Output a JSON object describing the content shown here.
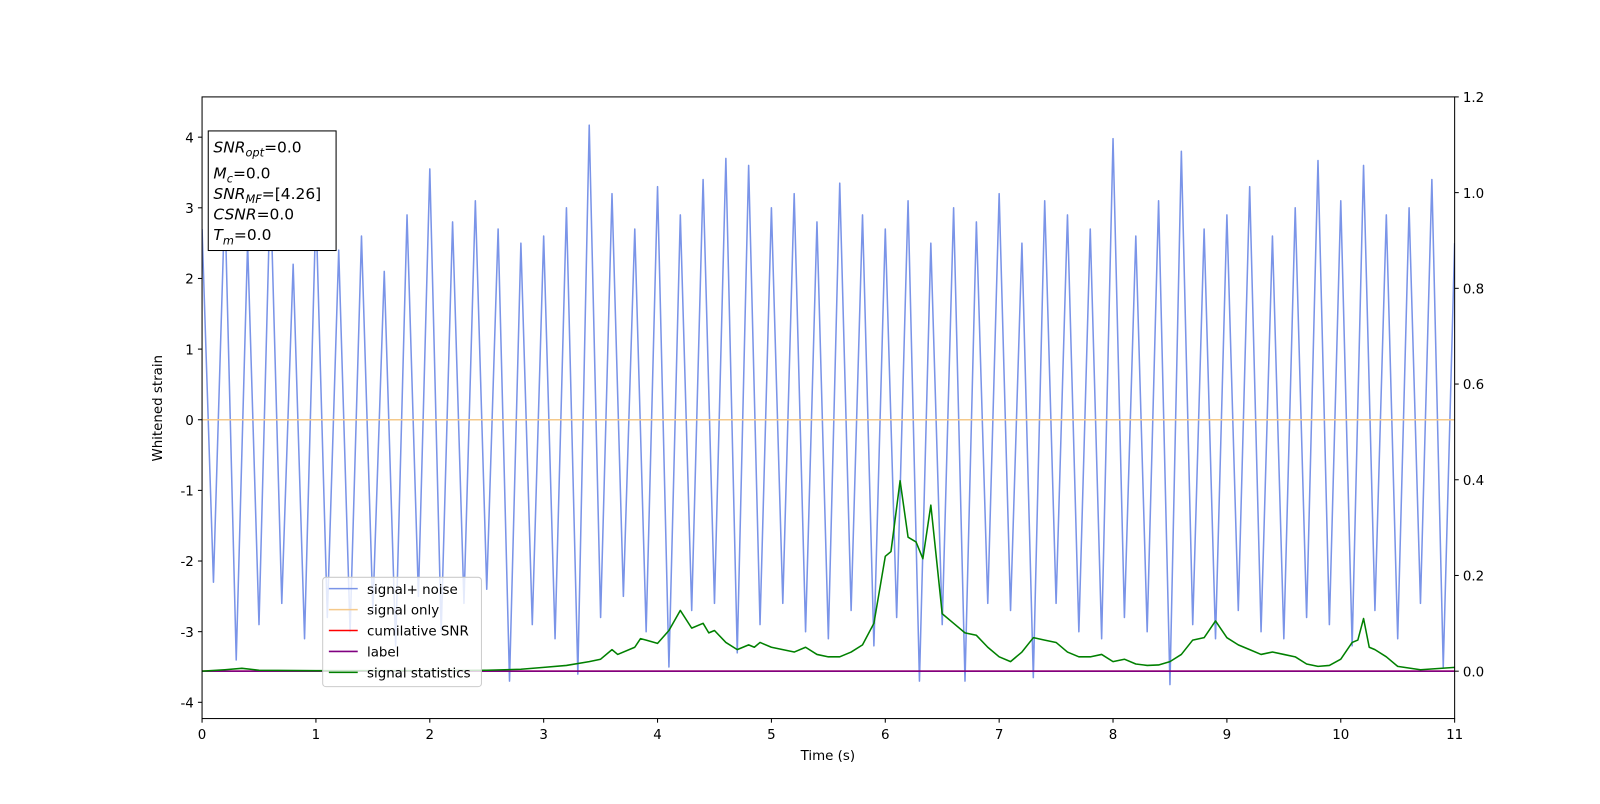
{
  "chart_data": {
    "type": "line",
    "xlabel": "Time (s)",
    "ylabel": "Whitened strain",
    "xlim": [
      0,
      11
    ],
    "xticks": [
      0,
      1,
      2,
      3,
      4,
      5,
      6,
      7,
      8,
      9,
      10,
      11
    ],
    "ylim": [
      -4.23,
      4.57
    ],
    "yticks": [
      -4,
      -3,
      -2,
      -1,
      0,
      1,
      2,
      3,
      4
    ],
    "y2lim": [
      -0.099,
      1.2
    ],
    "y2ticks": [
      {
        "value": 0,
        "label": "0.0"
      },
      0.2,
      0.4,
      0.6,
      0.8,
      {
        "value": 1,
        "label": "1.0"
      },
      1.2
    ],
    "annotation_box": [
      {
        "text": "SNR",
        "sub": "opt",
        "suffix": "=0.0"
      },
      {
        "text": "M",
        "sub": "c",
        "suffix": "=0.0"
      },
      {
        "text": "SNR",
        "sub": "MF",
        "suffix": "=[4.26]"
      },
      {
        "text": "CSNR",
        "suffix": "=0.0"
      },
      {
        "text": "T",
        "sub": "m",
        "suffix": "=0.0"
      }
    ],
    "series": [
      {
        "name": "signal+ noise",
        "color": "#7a94e8",
        "x": [
          0,
          0.1,
          0.2,
          0.3,
          0.4,
          0.5,
          0.6,
          0.7,
          0.8,
          0.9,
          1,
          1.1,
          1.2,
          1.3,
          1.4,
          1.5,
          1.6,
          1.7,
          1.8,
          1.9,
          2,
          2.1,
          2.2,
          2.3,
          2.4,
          2.5,
          2.6,
          2.7,
          2.8,
          2.9,
          3,
          3.1,
          3.2,
          3.3,
          3.4,
          3.5,
          3.6,
          3.7,
          3.8,
          3.9,
          4,
          4.1,
          4.2,
          4.3,
          4.4,
          4.5,
          4.6,
          4.7,
          4.8,
          4.9,
          5,
          5.1,
          5.2,
          5.3,
          5.4,
          5.5,
          5.6,
          5.7,
          5.8,
          5.9,
          6,
          6.1,
          6.2,
          6.3,
          6.4,
          6.5,
          6.6,
          6.7,
          6.8,
          6.9,
          7,
          7.1,
          7.2,
          7.3,
          7.4,
          7.5,
          7.6,
          7.7,
          7.8,
          7.9,
          8,
          8.1,
          8.2,
          8.3,
          8.4,
          8.5,
          8.6,
          8.7,
          8.8,
          8.9,
          9,
          9.1,
          9.2,
          9.3,
          9.4,
          9.5,
          9.6,
          9.7,
          9.8,
          9.9,
          10,
          10.1,
          10.2,
          10.3,
          10.4,
          10.5,
          10.6,
          10.7,
          10.8,
          10.9,
          11
        ],
        "values": [
          2.7,
          -2.3,
          3.1,
          -3.4,
          2.5,
          -2.9,
          3.3,
          -2.6,
          2.2,
          -3.1,
          3.0,
          -2.8,
          2.4,
          -3.0,
          2.6,
          -2.7,
          2.1,
          -3.2,
          2.9,
          -2.5,
          3.55,
          -3.0,
          2.8,
          -2.6,
          3.1,
          -2.4,
          2.7,
          -3.7,
          2.5,
          -2.9,
          2.6,
          -3.1,
          3.0,
          -3.6,
          4.17,
          -2.8,
          3.2,
          -2.5,
          2.7,
          -3.0,
          3.3,
          -3.5,
          2.9,
          -2.7,
          3.4,
          -2.6,
          3.7,
          -3.3,
          3.6,
          -2.9,
          3.0,
          -2.6,
          3.2,
          -3.0,
          2.8,
          -3.1,
          3.35,
          -2.7,
          2.9,
          -3.2,
          2.7,
          -2.8,
          3.1,
          -3.7,
          2.5,
          -2.9,
          3.0,
          -3.7,
          2.8,
          -2.6,
          3.2,
          -2.7,
          2.5,
          -3.65,
          3.1,
          -2.6,
          2.9,
          -3.0,
          2.7,
          -3.1,
          3.98,
          -2.8,
          2.6,
          -3.0,
          3.1,
          -3.75,
          3.8,
          -2.9,
          2.7,
          -3.1,
          2.9,
          -2.7,
          3.3,
          -3.0,
          2.6,
          -3.1,
          3.0,
          -2.8,
          3.67,
          -2.9,
          3.1,
          -3.2,
          3.6,
          -2.7,
          2.9,
          -3.1,
          3.0,
          -2.6,
          3.4,
          -3.5,
          2.5
        ]
      },
      {
        "name": "signal only",
        "color": "#f5c98a",
        "x": [
          0,
          11
        ],
        "values": [
          0,
          0
        ]
      },
      {
        "name": "cumilative SNR",
        "color": "#ff0000",
        "axis": "y2",
        "x": [
          0,
          11
        ],
        "values": [
          0,
          0
        ]
      },
      {
        "name": "label",
        "color": "#800080",
        "axis": "y2",
        "x": [
          0,
          11
        ],
        "values": [
          0,
          0
        ]
      },
      {
        "name": "signal statistics",
        "color": "#008000",
        "axis": "y2",
        "x": [
          0,
          0.2,
          0.35,
          0.5,
          1,
          1.5,
          2,
          2.5,
          2.8,
          3,
          3.2,
          3.4,
          3.5,
          3.6,
          3.65,
          3.8,
          3.85,
          3.9,
          4.0,
          4.1,
          4.2,
          4.3,
          4.4,
          4.45,
          4.5,
          4.6,
          4.7,
          4.8,
          4.85,
          4.9,
          5.0,
          5.1,
          5.2,
          5.3,
          5.4,
          5.5,
          5.6,
          5.7,
          5.8,
          5.9,
          6.0,
          6.05,
          6.13,
          6.2,
          6.27,
          6.33,
          6.4,
          6.5,
          6.6,
          6.7,
          6.8,
          6.9,
          7.0,
          7.1,
          7.2,
          7.3,
          7.4,
          7.5,
          7.6,
          7.7,
          7.8,
          7.9,
          8.0,
          8.1,
          8.2,
          8.3,
          8.4,
          8.5,
          8.6,
          8.7,
          8.8,
          8.9,
          9.0,
          9.1,
          9.2,
          9.3,
          9.4,
          9.5,
          9.6,
          9.7,
          9.8,
          9.9,
          10.0,
          10.1,
          10.15,
          10.2,
          10.25,
          10.3,
          10.4,
          10.5,
          10.7,
          11
        ],
        "values": [
          0,
          0.003,
          0.006,
          0.002,
          0.001,
          0.001,
          0.001,
          0.002,
          0.004,
          0.008,
          0.012,
          0.02,
          0.025,
          0.045,
          0.035,
          0.05,
          0.068,
          0.065,
          0.058,
          0.085,
          0.127,
          0.09,
          0.1,
          0.08,
          0.085,
          0.06,
          0.045,
          0.055,
          0.05,
          0.06,
          0.05,
          0.045,
          0.04,
          0.05,
          0.035,
          0.03,
          0.03,
          0.04,
          0.055,
          0.1,
          0.24,
          0.25,
          0.398,
          0.28,
          0.27,
          0.235,
          0.347,
          0.12,
          0.1,
          0.08,
          0.075,
          0.05,
          0.03,
          0.02,
          0.04,
          0.07,
          0.065,
          0.06,
          0.04,
          0.03,
          0.03,
          0.035,
          0.02,
          0.025,
          0.015,
          0.012,
          0.013,
          0.02,
          0.035,
          0.065,
          0.07,
          0.105,
          0.07,
          0.055,
          0.045,
          0.035,
          0.04,
          0.035,
          0.03,
          0.015,
          0.01,
          0.012,
          0.025,
          0.06,
          0.065,
          0.11,
          0.05,
          0.045,
          0.03,
          0.01,
          0.003,
          0.008
        ]
      }
    ]
  }
}
